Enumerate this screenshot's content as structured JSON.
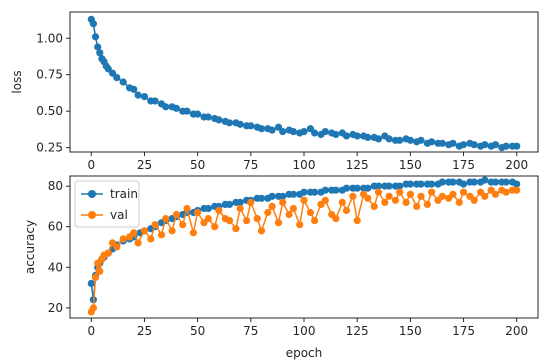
{
  "colors": {
    "train": "#1f77b4",
    "val": "#ff7f0e",
    "axes": "#262626",
    "background": "#ffffff"
  },
  "chart_data": [
    {
      "type": "scatter",
      "title": "",
      "xlabel": "",
      "ylabel": "loss",
      "xlim": [
        -10,
        210
      ],
      "ylim": [
        0.22,
        1.18
      ],
      "xticks": [
        0,
        25,
        50,
        75,
        100,
        125,
        150,
        175,
        200
      ],
      "xtick_labels": [
        "0",
        "25",
        "50",
        "75",
        "100",
        "125",
        "150",
        "175",
        "200"
      ],
      "yticks": [
        0.25,
        0.5,
        0.75,
        1.0
      ],
      "ytick_labels": [
        "0.25",
        "0.50",
        "0.75",
        "1.00"
      ],
      "grid": false,
      "legend": null,
      "series": [
        {
          "x": [
            0,
            1,
            2,
            3,
            4,
            5,
            6,
            7,
            8,
            10,
            12,
            15,
            18,
            20,
            22,
            25,
            28,
            30,
            33,
            35,
            38,
            40,
            43,
            45,
            48,
            50,
            53,
            55,
            58,
            60,
            63,
            65,
            68,
            70,
            73,
            75,
            78,
            80,
            83,
            85,
            88,
            90,
            93,
            95,
            98,
            100,
            103,
            105,
            108,
            110,
            113,
            115,
            118,
            120,
            123,
            125,
            128,
            130,
            133,
            135,
            138,
            140,
            143,
            145,
            148,
            150,
            153,
            155,
            158,
            160,
            163,
            165,
            168,
            170,
            173,
            175,
            178,
            180,
            183,
            185,
            188,
            190,
            193,
            195,
            198,
            200
          ],
          "y": [
            1.13,
            1.1,
            1.01,
            0.94,
            0.9,
            0.86,
            0.84,
            0.81,
            0.79,
            0.76,
            0.73,
            0.7,
            0.66,
            0.65,
            0.61,
            0.6,
            0.57,
            0.57,
            0.55,
            0.53,
            0.53,
            0.52,
            0.5,
            0.5,
            0.48,
            0.48,
            0.46,
            0.46,
            0.45,
            0.44,
            0.43,
            0.42,
            0.42,
            0.41,
            0.4,
            0.4,
            0.39,
            0.38,
            0.38,
            0.37,
            0.39,
            0.36,
            0.37,
            0.36,
            0.35,
            0.36,
            0.38,
            0.35,
            0.34,
            0.36,
            0.35,
            0.34,
            0.35,
            0.33,
            0.34,
            0.33,
            0.33,
            0.32,
            0.32,
            0.31,
            0.33,
            0.31,
            0.3,
            0.3,
            0.31,
            0.3,
            0.29,
            0.3,
            0.28,
            0.29,
            0.28,
            0.28,
            0.27,
            0.28,
            0.26,
            0.27,
            0.28,
            0.27,
            0.26,
            0.27,
            0.26,
            0.27,
            0.25,
            0.26,
            0.26,
            0.26
          ]
        }
      ]
    },
    {
      "type": "line",
      "title": "",
      "xlabel": "epoch",
      "ylabel": "accuracy",
      "xlim": [
        -10,
        210
      ],
      "ylim": [
        15,
        85
      ],
      "xticks": [
        0,
        25,
        50,
        75,
        100,
        125,
        150,
        175,
        200
      ],
      "xtick_labels": [
        "0",
        "25",
        "50",
        "75",
        "100",
        "125",
        "150",
        "175",
        "200"
      ],
      "yticks": [
        20,
        40,
        60,
        80
      ],
      "ytick_labels": [
        "20",
        "40",
        "60",
        "80"
      ],
      "grid": false,
      "legend": "top-left",
      "series": [
        {
          "name": "train",
          "x": [
            0,
            1,
            2,
            3,
            4,
            5,
            6,
            8,
            10,
            12,
            15,
            18,
            20,
            23,
            25,
            28,
            30,
            33,
            35,
            38,
            40,
            43,
            45,
            48,
            50,
            53,
            55,
            58,
            60,
            63,
            65,
            68,
            70,
            73,
            75,
            78,
            80,
            83,
            85,
            88,
            90,
            93,
            95,
            98,
            100,
            103,
            105,
            108,
            110,
            113,
            115,
            118,
            120,
            123,
            125,
            128,
            130,
            133,
            135,
            138,
            140,
            143,
            145,
            148,
            150,
            153,
            155,
            158,
            160,
            163,
            165,
            168,
            170,
            173,
            175,
            178,
            180,
            183,
            185,
            188,
            190,
            193,
            195,
            198,
            200
          ],
          "values": [
            32,
            24,
            36,
            40,
            42,
            44,
            45,
            47,
            49,
            51,
            53,
            54,
            55,
            57,
            58,
            59,
            60,
            62,
            63,
            64,
            65,
            66,
            67,
            67,
            68,
            69,
            69,
            70,
            70,
            71,
            71,
            72,
            72,
            73,
            73,
            74,
            74,
            74,
            75,
            75,
            75,
            76,
            76,
            76,
            77,
            77,
            77,
            77,
            78,
            78,
            78,
            78,
            79,
            79,
            79,
            79,
            79,
            80,
            80,
            80,
            80,
            80,
            80,
            81,
            81,
            81,
            81,
            81,
            81,
            81,
            82,
            82,
            82,
            82,
            81,
            82,
            82,
            82,
            83,
            82,
            82,
            82,
            82,
            82,
            81
          ]
        },
        {
          "name": "val",
          "x": [
            0,
            1,
            2,
            3,
            4,
            5,
            6,
            8,
            10,
            12,
            15,
            18,
            20,
            22,
            25,
            28,
            30,
            33,
            35,
            38,
            40,
            43,
            45,
            48,
            50,
            53,
            55,
            58,
            60,
            63,
            65,
            68,
            70,
            73,
            75,
            78,
            80,
            83,
            85,
            88,
            90,
            93,
            95,
            98,
            100,
            103,
            105,
            108,
            110,
            113,
            115,
            118,
            120,
            123,
            125,
            128,
            130,
            133,
            135,
            138,
            140,
            143,
            145,
            148,
            150,
            153,
            155,
            158,
            160,
            163,
            165,
            168,
            170,
            173,
            175,
            178,
            180,
            183,
            185,
            188,
            190,
            193,
            195,
            198,
            200
          ],
          "values": [
            18,
            20,
            35,
            42,
            38,
            44,
            46,
            47,
            52,
            50,
            54,
            55,
            57,
            52,
            58,
            54,
            61,
            56,
            64,
            58,
            66,
            61,
            69,
            57,
            67,
            62,
            64,
            60,
            68,
            64,
            63,
            59,
            69,
            63,
            72,
            64,
            58,
            67,
            70,
            62,
            72,
            66,
            69,
            61,
            73,
            67,
            63,
            71,
            73,
            66,
            64,
            72,
            68,
            75,
            63,
            76,
            74,
            70,
            77,
            72,
            75,
            73,
            77,
            72,
            76,
            70,
            75,
            71,
            77,
            73,
            75,
            74,
            76,
            72,
            77,
            75,
            73,
            77,
            75,
            78,
            76,
            78,
            77,
            78,
            78
          ]
        }
      ]
    }
  ]
}
